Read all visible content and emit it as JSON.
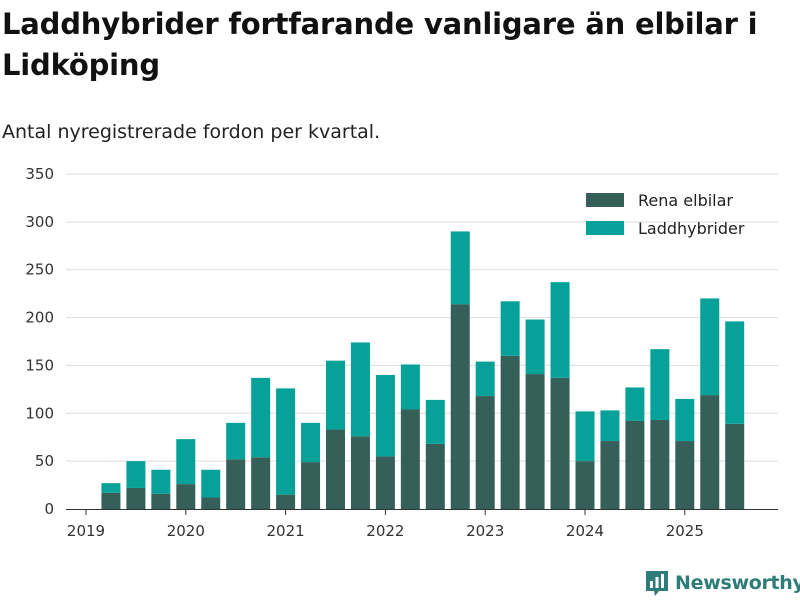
{
  "title": "Laddhybrider fortfarande vanligare än elbilar i Lidköping",
  "subtitle": "Antal nyregistrerade fordon per kvartal.",
  "brand": {
    "name": "Newsworthy",
    "color": "#2f7d7a"
  },
  "chart_data": {
    "type": "bar",
    "stacked": true,
    "title": "Laddhybrider fortfarande vanligare än elbilar i Lidköping",
    "subtitle": "Antal nyregistrerade fordon per kvartal.",
    "xlabel": "",
    "ylabel": "",
    "ylim": [
      0,
      350
    ],
    "yticks": [
      0,
      50,
      100,
      150,
      200,
      250,
      300,
      350
    ],
    "grid": true,
    "legend_position": "top-right",
    "x_tick_labels": [
      "2019",
      "2020",
      "2021",
      "2022",
      "2023",
      "2024",
      "2025"
    ],
    "categories": [
      "2019 Q2",
      "2019 Q3",
      "2019 Q4",
      "2020 Q1",
      "2020 Q2",
      "2020 Q3",
      "2020 Q4",
      "2021 Q1",
      "2021 Q2",
      "2021 Q3",
      "2021 Q4",
      "2022 Q1",
      "2022 Q2",
      "2022 Q3",
      "2022 Q4",
      "2023 Q1",
      "2023 Q2",
      "2023 Q3",
      "2023 Q4",
      "2024 Q1",
      "2024 Q2",
      "2024 Q3",
      "2024 Q4",
      "2025 Q1",
      "2025 Q2",
      "2025 Q3"
    ],
    "series": [
      {
        "name": "Rena elbilar",
        "color": "#356059",
        "values": [
          17,
          22,
          16,
          26,
          12,
          52,
          54,
          15,
          49,
          83,
          76,
          55,
          104,
          68,
          214,
          118,
          160,
          141,
          137,
          50,
          71,
          92,
          93,
          71,
          119,
          89
        ]
      },
      {
        "name": "Laddhybrider",
        "color": "#06a199",
        "values": [
          10,
          28,
          25,
          47,
          29,
          38,
          83,
          111,
          41,
          72,
          98,
          85,
          47,
          46,
          76,
          36,
          57,
          57,
          100,
          52,
          32,
          35,
          74,
          44,
          101,
          107
        ]
      }
    ]
  }
}
